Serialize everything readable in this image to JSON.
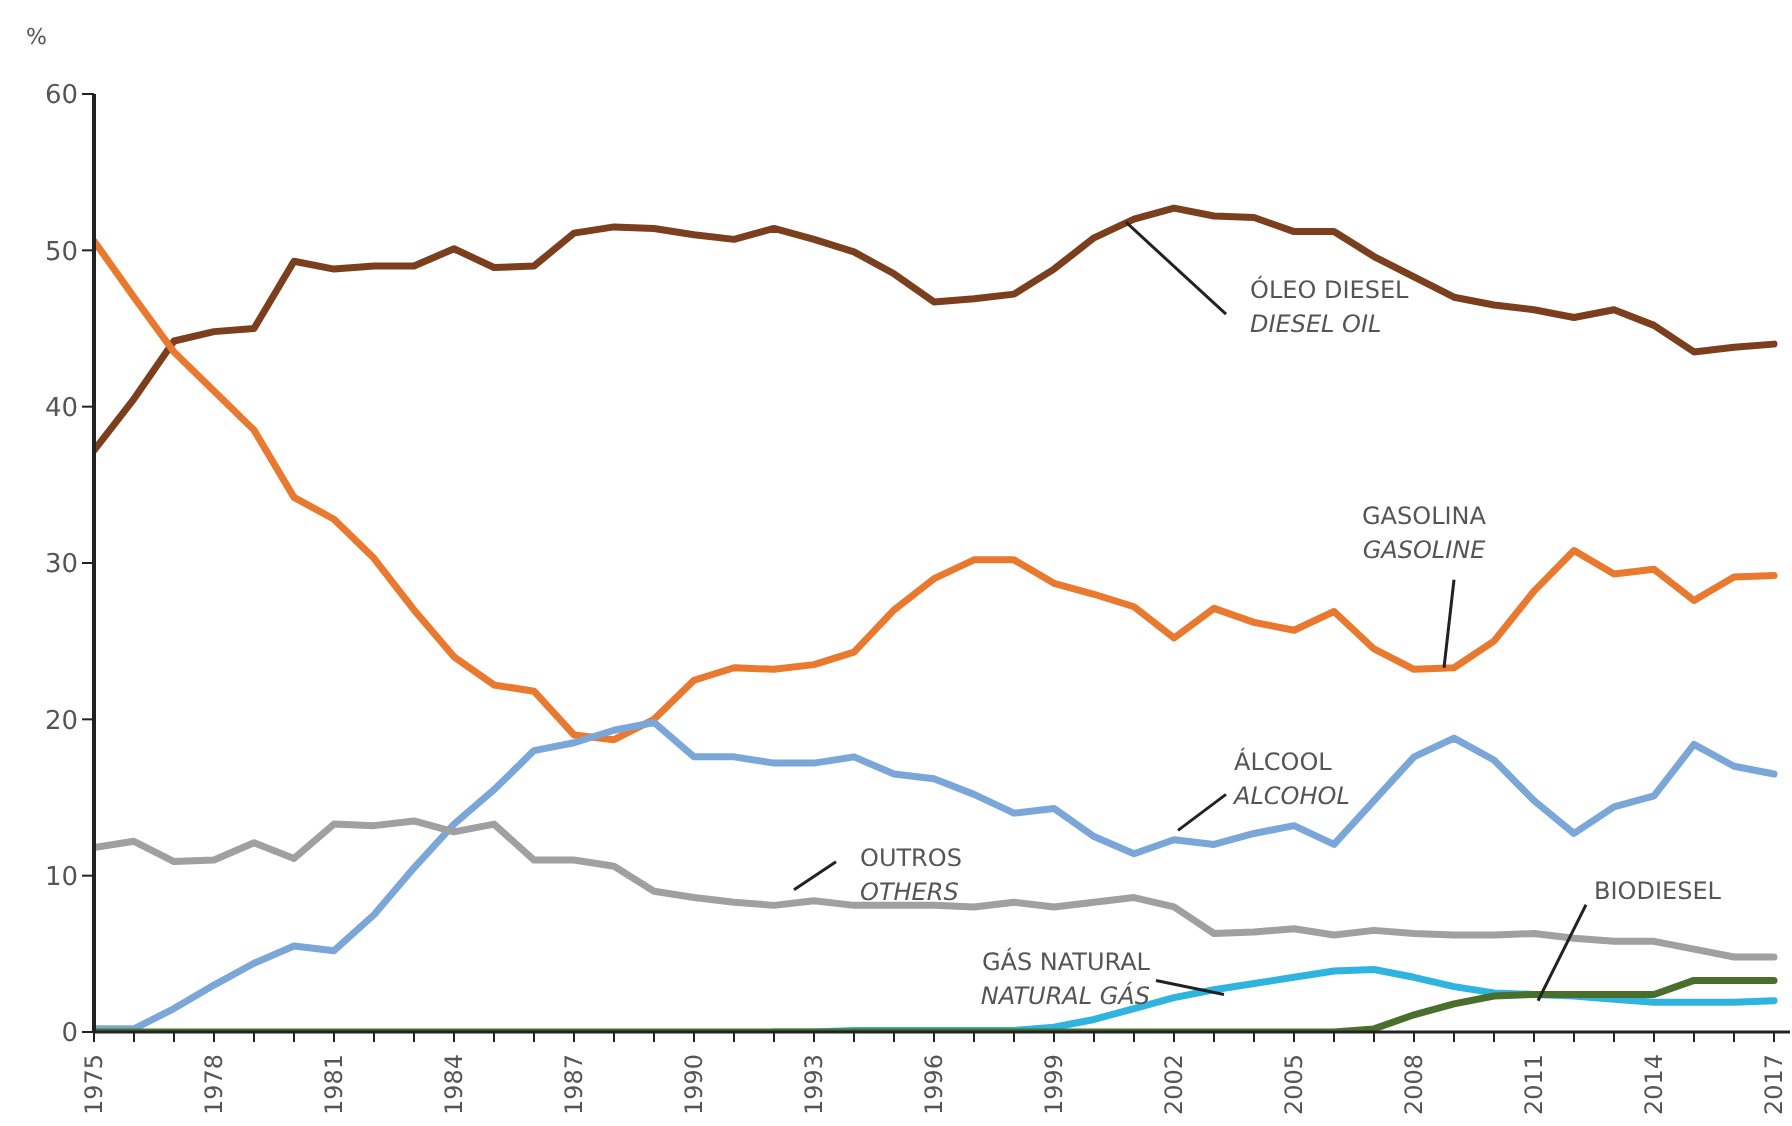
{
  "chart_data": {
    "type": "line",
    "ylabel": "%",
    "x": [
      1975,
      1976,
      1977,
      1978,
      1979,
      1980,
      1981,
      1982,
      1983,
      1984,
      1985,
      1986,
      1987,
      1988,
      1989,
      1990,
      1991,
      1992,
      1993,
      1994,
      1995,
      1996,
      1997,
      1998,
      1999,
      2000,
      2001,
      2002,
      2003,
      2004,
      2005,
      2006,
      2007,
      2008,
      2009,
      2010,
      2011,
      2012,
      2013,
      2014,
      2015,
      2016,
      2017
    ],
    "xlim": [
      1975,
      2017.4
    ],
    "xticks": [
      1975,
      {
        "value": 1976,
        "label": null
      },
      {
        "value": 1977,
        "label": null
      },
      1978,
      {
        "value": 1979,
        "label": null
      },
      {
        "value": 1980,
        "label": null
      },
      1981,
      {
        "value": 1982,
        "label": null
      },
      {
        "value": 1983,
        "label": null
      },
      1984,
      {
        "value": 1985,
        "label": null
      },
      {
        "value": 1986,
        "label": null
      },
      1987,
      {
        "value": 1988,
        "label": null
      },
      {
        "value": 1989,
        "label": null
      },
      1990,
      {
        "value": 1991,
        "label": null
      },
      {
        "value": 1992,
        "label": null
      },
      1993,
      {
        "value": 1994,
        "label": null
      },
      {
        "value": 1995,
        "label": null
      },
      1996,
      {
        "value": 1997,
        "label": null
      },
      {
        "value": 1998,
        "label": null
      },
      1999,
      {
        "value": 2000,
        "label": null
      },
      {
        "value": 2001,
        "label": null
      },
      2002,
      {
        "value": 2003,
        "label": null
      },
      {
        "value": 2004,
        "label": null
      },
      2005,
      {
        "value": 2006,
        "label": null
      },
      {
        "value": 2007,
        "label": null
      },
      2008,
      {
        "value": 2009,
        "label": null
      },
      {
        "value": 2010,
        "label": null
      },
      2011,
      {
        "value": 2012,
        "label": null
      },
      {
        "value": 2013,
        "label": null
      },
      2014,
      {
        "value": 2015,
        "label": null
      },
      {
        "value": 2016,
        "label": null
      },
      2017
    ],
    "ylim": [
      0,
      60
    ],
    "yticks": [
      0,
      10,
      20,
      30,
      40,
      50,
      60
    ],
    "series": [
      {
        "color": "#7b3f1e",
        "values": [
          37.2,
          40.5,
          44.2,
          44.8,
          45,
          49.3,
          48.8,
          49,
          49,
          50.1,
          48.9,
          49,
          51.1,
          51.5,
          51.4,
          51,
          50.7,
          51.4,
          50.7,
          49.9,
          48.5,
          46.7,
          46.9,
          47.2,
          48.8,
          50.8,
          52,
          52.7,
          52.2,
          52.1,
          51.2,
          51.2,
          49.6,
          48.3,
          47,
          46.5,
          46.2,
          45.7,
          46.2,
          45.2,
          43.5,
          43.8,
          44
        ]
      },
      {
        "color": "#e8792e",
        "values": [
          50.6,
          47,
          43.5,
          41,
          38.5,
          34.2,
          32.8,
          30.3,
          27,
          24,
          22.2,
          21.8,
          19,
          18.7,
          20,
          22.5,
          23.3,
          23.2,
          23.5,
          24.3,
          27,
          29,
          30.2,
          30.2,
          28.7,
          28,
          27.2,
          25.2,
          27.1,
          26.2,
          25.7,
          26.9,
          24.5,
          23.2,
          23.3,
          25,
          28.2,
          30.8,
          29.3,
          29.6,
          27.6,
          29.1,
          29.2
        ]
      },
      {
        "color": "#7ba7d8",
        "values": [
          0.2,
          0.2,
          1.5,
          3,
          4.4,
          5.5,
          5.2,
          7.5,
          10.5,
          13.3,
          15.5,
          18,
          18.5,
          19.3,
          19.8,
          17.6,
          17.6,
          17.2,
          17.2,
          17.6,
          16.5,
          16.2,
          15.2,
          14,
          14.3,
          12.5,
          11.4,
          12.3,
          12,
          12.7,
          13.2,
          12,
          14.8,
          17.6,
          18.8,
          17.4,
          14.8,
          12.7,
          14.4,
          15.1,
          18.4,
          17,
          16.5
        ]
      },
      {
        "color": "#a0a0a0",
        "values": [
          11.8,
          12.2,
          10.9,
          11,
          12.1,
          11.1,
          13.3,
          13.2,
          13.5,
          12.8,
          13.3,
          11,
          11,
          10.6,
          9,
          8.6,
          8.3,
          8.1,
          8.4,
          8.1,
          8.1,
          8.1,
          8,
          8.3,
          8,
          8.3,
          8.6,
          8,
          6.3,
          6.4,
          6.6,
          6.2,
          6.5,
          6.3,
          6.2,
          6.2,
          6.3,
          6,
          5.8,
          5.8,
          5.3,
          4.8,
          4.8
        ]
      },
      {
        "color": "#2fb4e0",
        "values": [
          null,
          null,
          null,
          null,
          null,
          null,
          null,
          null,
          null,
          null,
          null,
          null,
          null,
          null,
          null,
          null,
          null,
          0,
          0,
          0.1,
          0.1,
          0.1,
          0.1,
          0.1,
          0.3,
          0.8,
          1.5,
          2.2,
          2.7,
          3.1,
          3.5,
          3.9,
          4,
          3.5,
          2.9,
          2.5,
          2.4,
          2.3,
          2.1,
          1.9,
          1.9,
          1.9,
          2
        ]
      },
      {
        "color": "#4a6e2c",
        "values": [
          0,
          0,
          0,
          0,
          0,
          0,
          0,
          0,
          0,
          0,
          0,
          0,
          0,
          0,
          0,
          0,
          0,
          0,
          0,
          0,
          0,
          0,
          0,
          0,
          0,
          0,
          0,
          0,
          0,
          0,
          0,
          0,
          0.2,
          1.1,
          1.8,
          2.3,
          2.4,
          2.4,
          2.4,
          2.4,
          3.3,
          3.3,
          3.3
        ]
      }
    ],
    "annotations": [
      {
        "text": "ÓLEO DIESEL\nDIESEL OIL",
        "x": 2000.8,
        "y": 51.8
      },
      {
        "text": "GASOLINA\nGASOLINE",
        "x": 2008.75,
        "y": 23.3
      },
      {
        "text": "ÁLCOOL\nALCOHOL",
        "x": 2002.1,
        "y": 12.9
      },
      {
        "text": "OUTROS\nOTHERS",
        "x": 1992.5,
        "y": 9.1
      },
      {
        "text": "GÁS NATURAL\nNATURAL GÁS",
        "x": 2003.25,
        "y": 2.4
      },
      {
        "text": "BIODIESEL",
        "x": 2011.1,
        "y": 2
      }
    ]
  }
}
